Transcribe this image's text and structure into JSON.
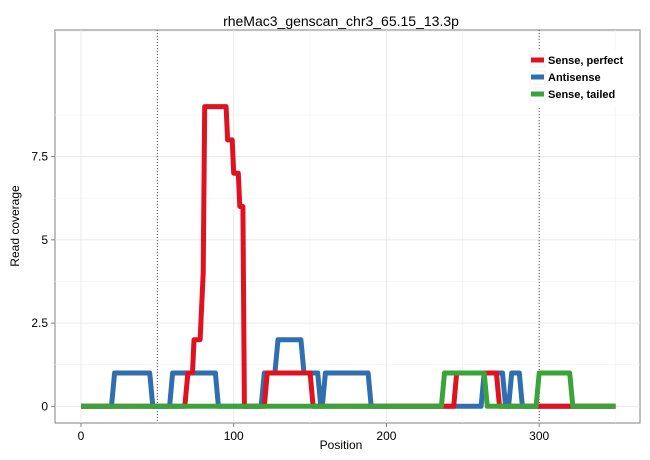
{
  "chart_data": {
    "type": "line",
    "title": "rheMac3_genscan_chr3_65.15_13.3p",
    "xlabel": "Position",
    "ylabel": "Read coverage",
    "xlim": [
      -17,
      366
    ],
    "ylim": [
      -0.5,
      11.3
    ],
    "x_ticks": [
      {
        "value": 0,
        "label": "0"
      },
      {
        "value": 100,
        "label": "100"
      },
      {
        "value": 200,
        "label": "200"
      },
      {
        "value": 300,
        "label": "300"
      }
    ],
    "y_ticks": [
      {
        "value": 0,
        "label": "0"
      },
      {
        "value": 2.5,
        "label": "2.5"
      },
      {
        "value": 5,
        "label": "5"
      },
      {
        "value": 7.5,
        "label": "7.5"
      }
    ],
    "reference_lines_x": [
      50,
      300
    ],
    "grid": true,
    "legend_position": "top-right",
    "series": [
      {
        "name": "Antisense",
        "color": "#2f6eaf",
        "points": [
          [
            0,
            0
          ],
          [
            20,
            0
          ],
          [
            22,
            1
          ],
          [
            45,
            1
          ],
          [
            47,
            0
          ],
          [
            58,
            0
          ],
          [
            60,
            1
          ],
          [
            88,
            1
          ],
          [
            90,
            0
          ],
          [
            118,
            0
          ],
          [
            120,
            1
          ],
          [
            127,
            1
          ],
          [
            129,
            2
          ],
          [
            144,
            2
          ],
          [
            146,
            1
          ],
          [
            155,
            1
          ],
          [
            157,
            0
          ],
          [
            158,
            0
          ],
          [
            160,
            1
          ],
          [
            188,
            1
          ],
          [
            190,
            0
          ],
          [
            262,
            0
          ],
          [
            264,
            1
          ],
          [
            276,
            1
          ],
          [
            278,
            0
          ],
          [
            280,
            0
          ],
          [
            282,
            1
          ],
          [
            287,
            1
          ],
          [
            289,
            0
          ],
          [
            350,
            0
          ]
        ]
      },
      {
        "name": "Sense, perfect",
        "color": "#e0121f",
        "points": [
          [
            0,
            0
          ],
          [
            68,
            0
          ],
          [
            70,
            1
          ],
          [
            73,
            1
          ],
          [
            74,
            2
          ],
          [
            78,
            2
          ],
          [
            80,
            4
          ],
          [
            81,
            9
          ],
          [
            95,
            9
          ],
          [
            96,
            8
          ],
          [
            99,
            8
          ],
          [
            100,
            7
          ],
          [
            103,
            7
          ],
          [
            104,
            6
          ],
          [
            106,
            6
          ],
          [
            107,
            0
          ],
          [
            120,
            0
          ],
          [
            122,
            1
          ],
          [
            150,
            1
          ],
          [
            152,
            0
          ],
          [
            244,
            0
          ],
          [
            246,
            1
          ],
          [
            272,
            1
          ],
          [
            274,
            0
          ],
          [
            350,
            0
          ]
        ]
      },
      {
        "name": "Sense, tailed",
        "color": "#3aa33a",
        "points": [
          [
            0,
            0
          ],
          [
            236,
            0
          ],
          [
            238,
            1
          ],
          [
            264,
            1
          ],
          [
            266,
            0
          ],
          [
            298,
            0
          ],
          [
            300,
            1
          ],
          [
            320,
            1
          ],
          [
            322,
            0
          ],
          [
            350,
            0
          ]
        ]
      }
    ],
    "legend_order": [
      "Sense, perfect",
      "Antisense",
      "Sense, tailed"
    ]
  }
}
